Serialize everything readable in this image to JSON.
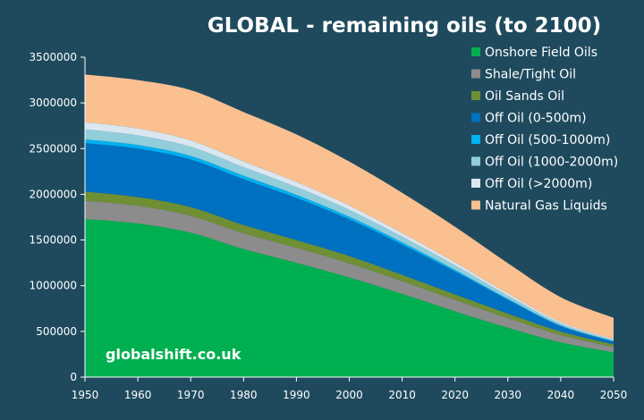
{
  "chart_data": {
    "type": "area",
    "stacked": true,
    "title": "GLOBAL - remaining oils (to 2100)",
    "xlabel": "",
    "ylabel": "",
    "xlim": [
      1950,
      2050
    ],
    "ylim": [
      0,
      3500000
    ],
    "x_ticks": [
      1950,
      1960,
      1970,
      1980,
      1990,
      2000,
      2010,
      2020,
      2030,
      2040,
      2050
    ],
    "y_ticks": [
      0,
      500000,
      1000000,
      1500000,
      2000000,
      2500000,
      3000000,
      3500000
    ],
    "grid": false,
    "legend_position": "top-right",
    "watermark": "globalshift.co.uk",
    "x": [
      1950,
      1960,
      1970,
      1980,
      1990,
      2000,
      2010,
      2020,
      2030,
      2040,
      2050
    ],
    "series": [
      {
        "name": "Onshore Field Oils",
        "color": "#00b050",
        "values": [
          1730000,
          1680000,
          1580000,
          1400000,
          1250000,
          1090000,
          910000,
          720000,
          540000,
          380000,
          270000
        ]
      },
      {
        "name": "Shale/Tight Oil",
        "color": "#8c8c8c",
        "values": [
          200000,
          195000,
          185000,
          175000,
          165000,
          155000,
          140000,
          125000,
          105000,
          80000,
          60000
        ]
      },
      {
        "name": "Oil Sands Oil",
        "color": "#6f8f35",
        "values": [
          100000,
          95000,
          95000,
          90000,
          85000,
          80000,
          70000,
          60000,
          50000,
          38000,
          28000
        ]
      },
      {
        "name": "Off Oil (0-500m)",
        "color": "#0070c0",
        "values": [
          530000,
          530000,
          520000,
          500000,
          460000,
          400000,
          330000,
          250000,
          150000,
          60000,
          30000
        ]
      },
      {
        "name": "Off Oil (500-1000m)",
        "color": "#00b0f0",
        "values": [
          40000,
          40000,
          40000,
          38000,
          35000,
          30000,
          25000,
          18000,
          12000,
          8000,
          5000
        ]
      },
      {
        "name": "Off Oil (1000-2000m)",
        "color": "#92cddc",
        "values": [
          110000,
          105000,
          100000,
          95000,
          85000,
          75000,
          62000,
          50000,
          35000,
          22000,
          15000
        ]
      },
      {
        "name": "Off Oil (>2000m)",
        "color": "#dae6f0",
        "values": [
          80000,
          75000,
          70000,
          62000,
          55000,
          48000,
          40000,
          32000,
          24000,
          16000,
          10000
        ]
      },
      {
        "name": "Natural Gas Liquids",
        "color": "#fac090",
        "values": [
          520000,
          530000,
          550000,
          540000,
          520000,
          480000,
          440000,
          390000,
          330000,
          270000,
          230000
        ]
      }
    ]
  }
}
